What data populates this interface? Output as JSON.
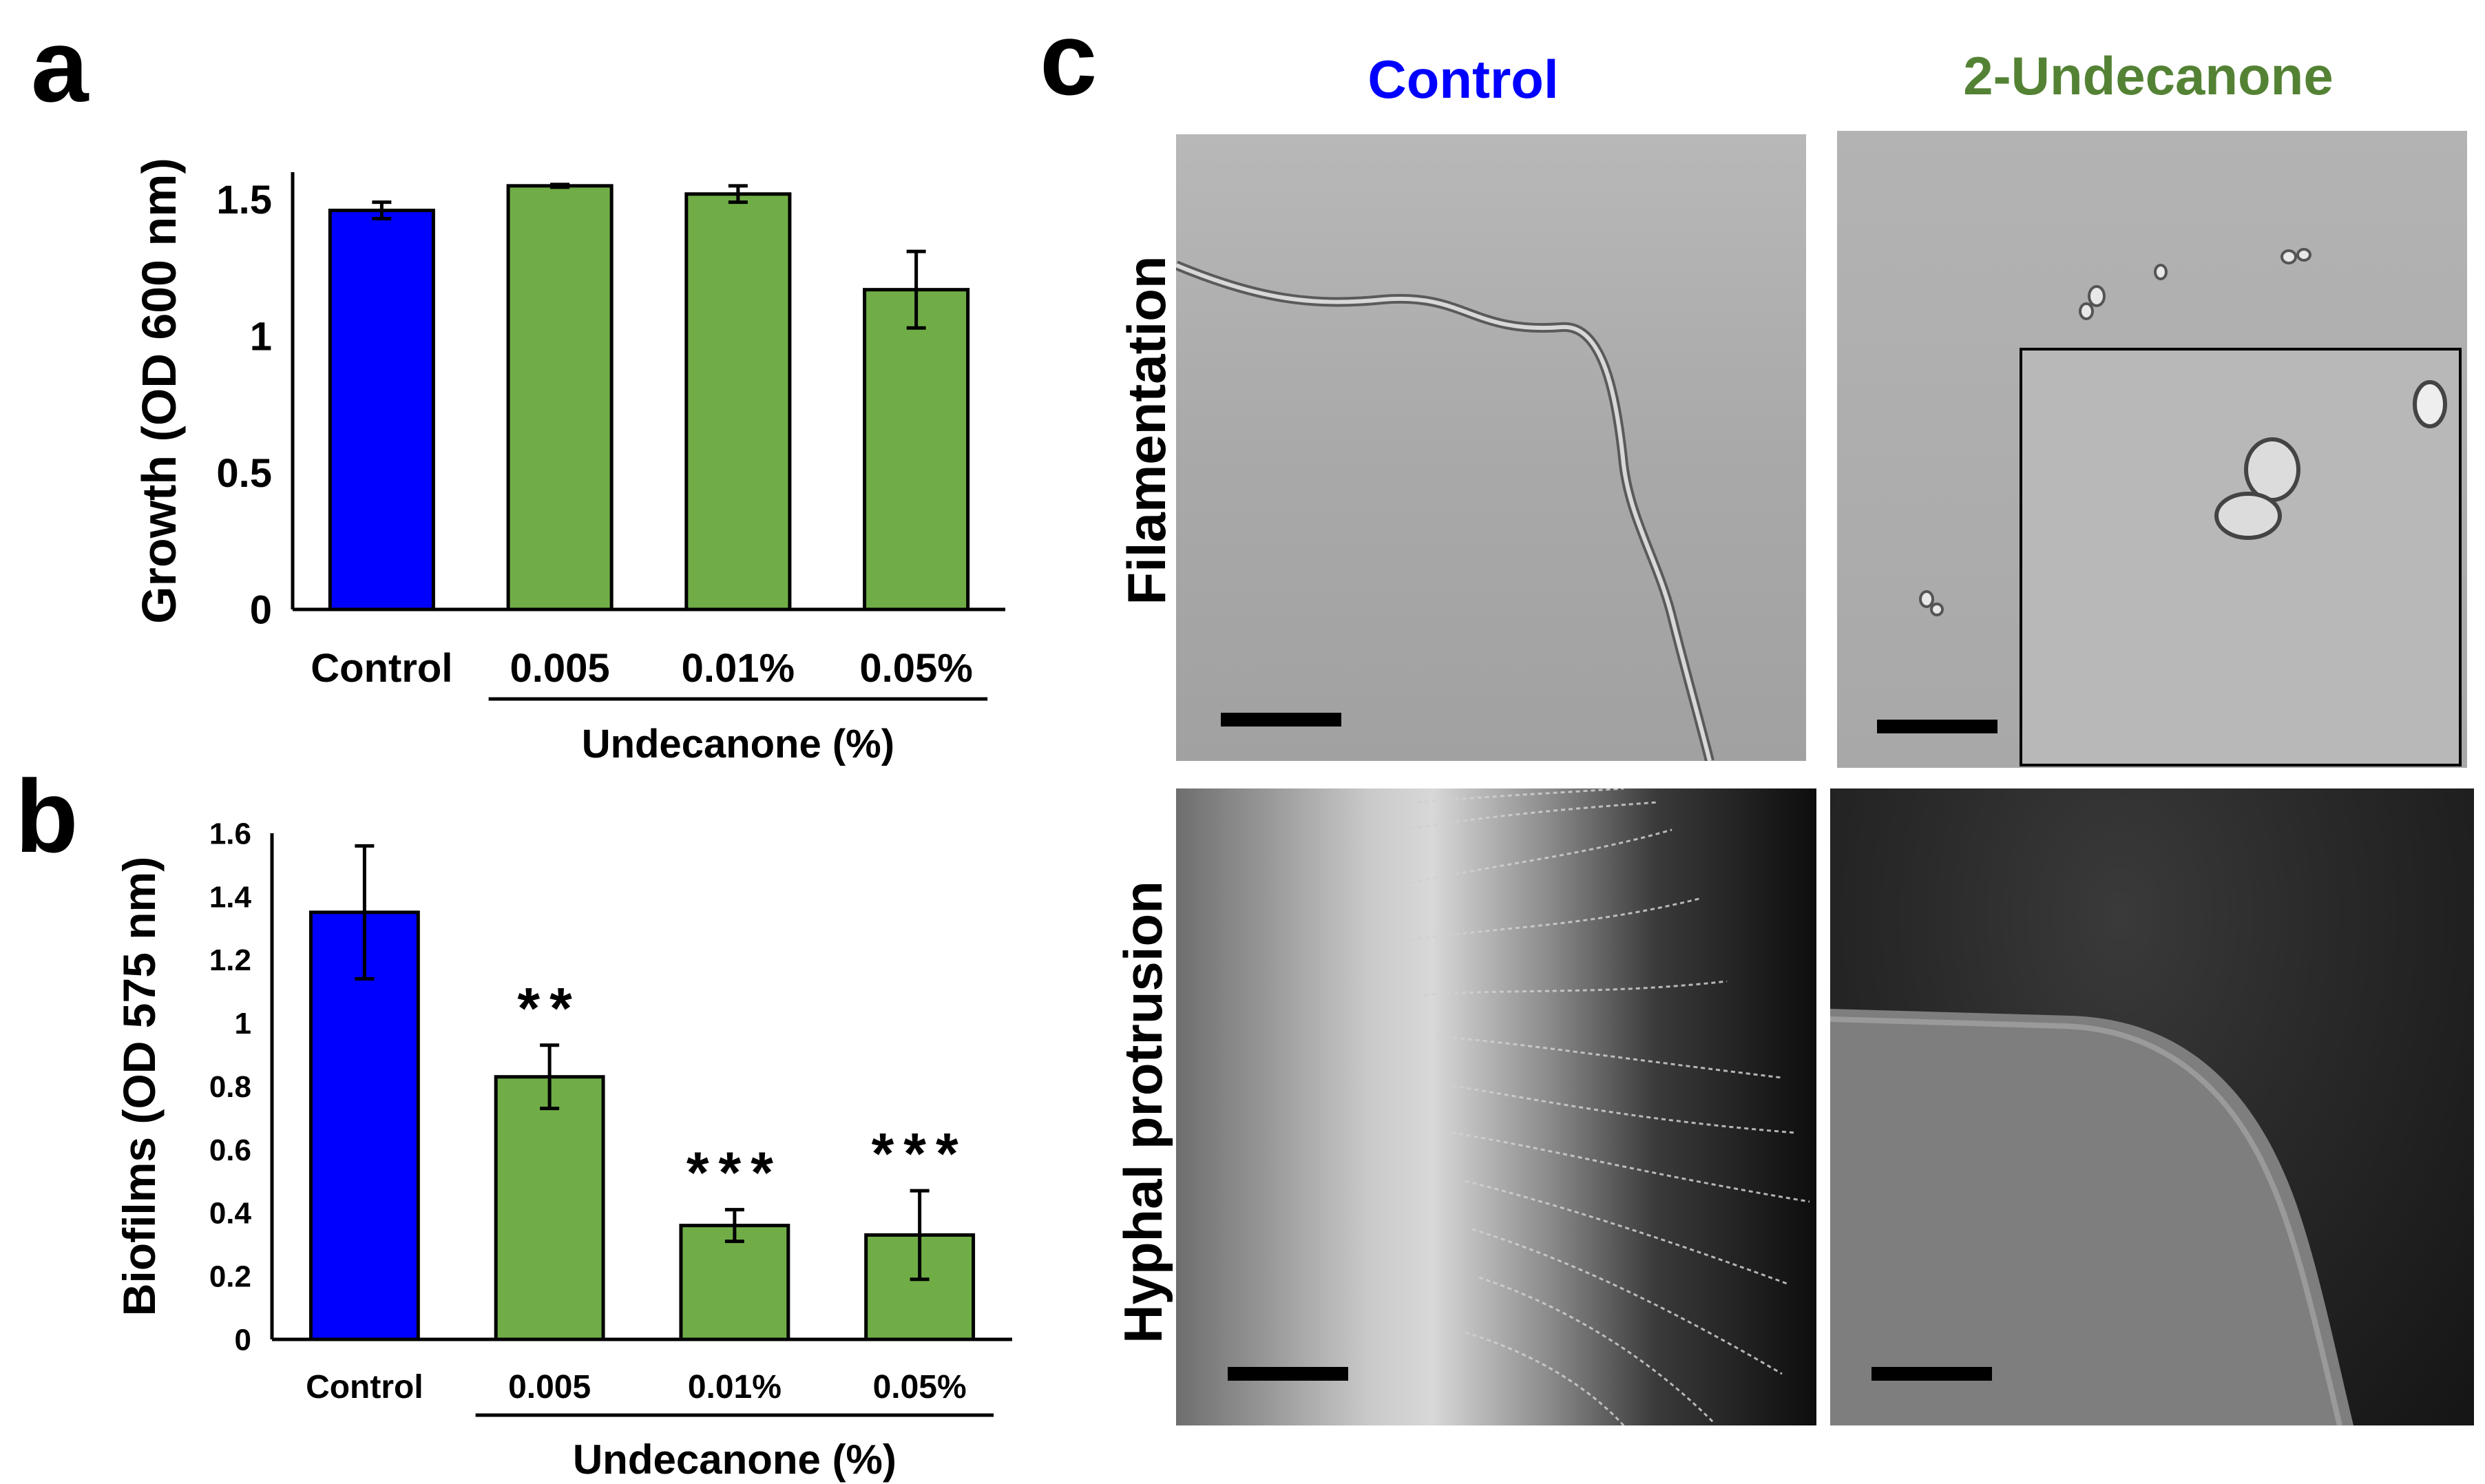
{
  "panels": {
    "a": "a",
    "b": "b",
    "c": "c"
  },
  "chart_data": [
    {
      "type": "bar",
      "panel": "a",
      "categories": [
        "Control",
        "0.005",
        "0.01%",
        "0.05%"
      ],
      "values": [
        1.46,
        1.55,
        1.52,
        1.17
      ],
      "errors": [
        0.03,
        0.005,
        0.03,
        0.14
      ],
      "colors": [
        "#0000ff",
        "#70ad47",
        "#70ad47",
        "#70ad47"
      ],
      "ylabel": "Growth (OD 600 nm)",
      "group_label": "Undecanone (%)",
      "ylim": [
        0,
        1.6
      ],
      "yticks": [
        "0",
        "0.5",
        "1",
        "1.5"
      ],
      "ytick_values": [
        0,
        0.5,
        1,
        1.5
      ]
    },
    {
      "type": "bar",
      "panel": "b",
      "categories": [
        "Control",
        "0.005",
        "0.01%",
        "0.05%"
      ],
      "values": [
        1.35,
        0.83,
        0.36,
        0.33
      ],
      "errors": [
        0.21,
        0.1,
        0.05,
        0.14
      ],
      "significance": [
        "",
        "**",
        "***",
        "***"
      ],
      "colors": [
        "#0000ff",
        "#70ad47",
        "#70ad47",
        "#70ad47"
      ],
      "ylabel": "Biofilms (OD 575 nm)",
      "group_label": "Undecanone (%)",
      "ylim": [
        0,
        1.6
      ],
      "yticks": [
        "0",
        "0.2",
        "0.4",
        "0.6",
        "0.8",
        "1",
        "1.2",
        "1.4",
        "1.6"
      ],
      "ytick_values": [
        0,
        0.2,
        0.4,
        0.6,
        0.8,
        1,
        1.2,
        1.4,
        1.6
      ]
    }
  ],
  "micrographs": {
    "columns": [
      {
        "label": "Control",
        "color": "#0000ff"
      },
      {
        "label": "2-Undecanone",
        "color": "#548235"
      }
    ],
    "rows": [
      "Filamentation",
      "Hyphal protrusion"
    ]
  }
}
